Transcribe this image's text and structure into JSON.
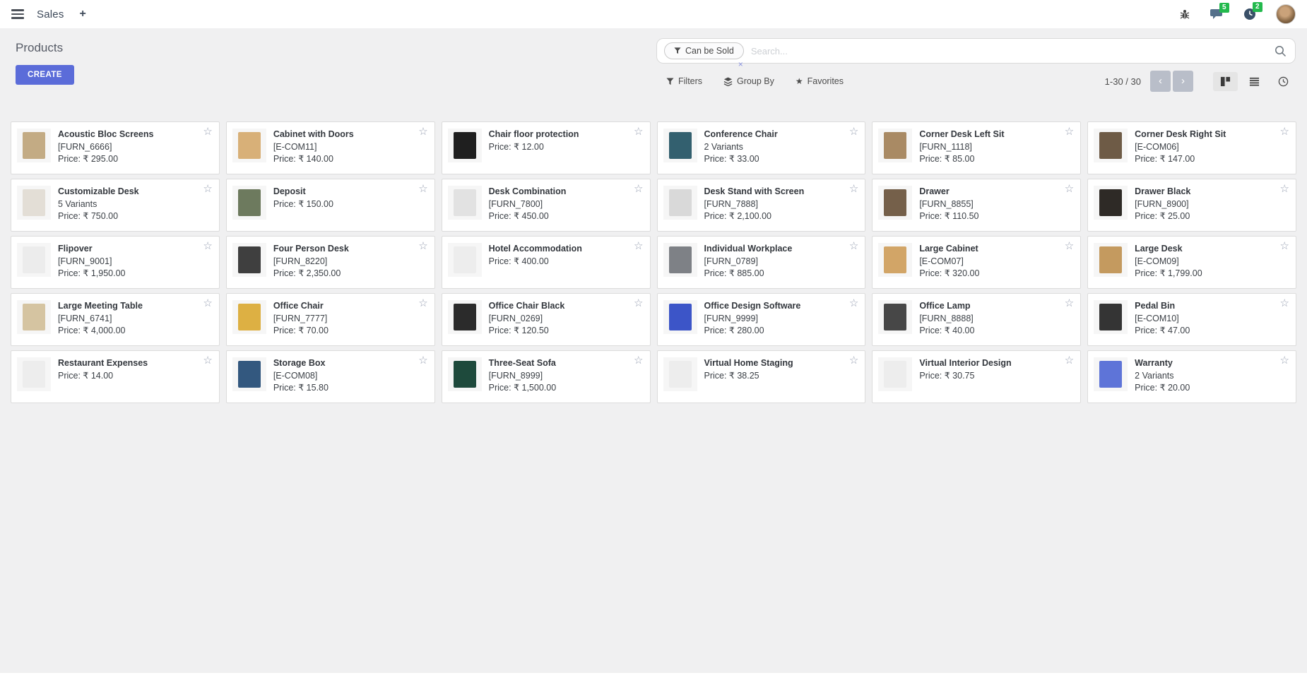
{
  "topbar": {
    "app_name": "Sales",
    "add_tab": "+",
    "message_badge": "5",
    "activity_badge": "2"
  },
  "control_panel": {
    "title": "Products",
    "create_label": "CREATE",
    "search": {
      "facet": "Can be Sold",
      "remove": "×",
      "placeholder": "Search..."
    },
    "filters_label": "Filters",
    "group_by_label": "Group By",
    "favorites_label": "Favorites",
    "pager_range": "1-30 / 30",
    "prev": "‹",
    "next": "›"
  },
  "colors": {
    "primary": "#5b6cd9",
    "badge_green": "#23b94d",
    "background": "#f0f0f1"
  },
  "icons": [
    "menu-icon",
    "bug-icon",
    "messages-icon",
    "activity-clock-icon",
    "avatar",
    "funnel-icon",
    "search-icon",
    "group-by-layers-icon",
    "favorites-star-icon",
    "kanban-view-icon",
    "list-view-icon",
    "activity-view-icon",
    "favorite-star-icon"
  ],
  "products": [
    {
      "name": "Acoustic Bloc Screens",
      "line2": "[FURN_6666]",
      "price": "Price: ₹ 295.00",
      "thumb": "#c3ab84"
    },
    {
      "name": "Cabinet with Doors",
      "line2": "[E-COM11]",
      "price": "Price: ₹ 140.00",
      "thumb": "#d8b078"
    },
    {
      "name": "Chair floor protection",
      "line2": null,
      "price": "Price: ₹ 12.00",
      "thumb": "#1f1f1f"
    },
    {
      "name": "Conference Chair",
      "line2": "2 Variants",
      "price": "Price: ₹ 33.00",
      "thumb": "#33606f"
    },
    {
      "name": "Corner Desk Left Sit",
      "line2": "[FURN_1118]",
      "price": "Price: ₹ 85.00",
      "thumb": "#a98a64"
    },
    {
      "name": "Corner Desk Right Sit",
      "line2": "[E-COM06]",
      "price": "Price: ₹ 147.00",
      "thumb": "#6e5b46"
    },
    {
      "name": "Customizable Desk",
      "line2": "5 Variants",
      "price": "Price: ₹ 750.00",
      "thumb": "#e3ded6"
    },
    {
      "name": "Deposit",
      "line2": null,
      "price": "Price: ₹ 150.00",
      "thumb": "#6d7a5e"
    },
    {
      "name": "Desk Combination",
      "line2": "[FURN_7800]",
      "price": "Price: ₹ 450.00",
      "thumb": "#e2e2e2"
    },
    {
      "name": "Desk Stand with Screen",
      "line2": "[FURN_7888]",
      "price": "Price: ₹ 2,100.00",
      "thumb": "#d9d9d9"
    },
    {
      "name": "Drawer",
      "line2": "[FURN_8855]",
      "price": "Price: ₹ 110.50",
      "thumb": "#75604a"
    },
    {
      "name": "Drawer Black",
      "line2": "[FURN_8900]",
      "price": "Price: ₹ 25.00",
      "thumb": "#2e2a26"
    },
    {
      "name": "Flipover",
      "line2": "[FURN_9001]",
      "price": "Price: ₹ 1,950.00",
      "thumb": "#ececec"
    },
    {
      "name": "Four Person Desk",
      "line2": "[FURN_8220]",
      "price": "Price: ₹ 2,350.00",
      "thumb": "#3f3f3f"
    },
    {
      "name": "Hotel Accommodation",
      "line2": null,
      "price": "Price: ₹ 400.00",
      "thumb": "#ededed"
    },
    {
      "name": "Individual Workplace",
      "line2": "[FURN_0789]",
      "price": "Price: ₹ 885.00",
      "thumb": "#7e8186"
    },
    {
      "name": "Large Cabinet",
      "line2": "[E-COM07]",
      "price": "Price: ₹ 320.00",
      "thumb": "#d2a567"
    },
    {
      "name": "Large Desk",
      "line2": "[E-COM09]",
      "price": "Price: ₹ 1,799.00",
      "thumb": "#c49a5f"
    },
    {
      "name": "Large Meeting Table",
      "line2": "[FURN_6741]",
      "price": "Price: ₹ 4,000.00",
      "thumb": "#d5c4a1"
    },
    {
      "name": "Office Chair",
      "line2": "[FURN_7777]",
      "price": "Price: ₹ 70.00",
      "thumb": "#ddb043"
    },
    {
      "name": "Office Chair Black",
      "line2": "[FURN_0269]",
      "price": "Price: ₹ 120.50",
      "thumb": "#2b2b2b"
    },
    {
      "name": "Office Design Software",
      "line2": "[FURN_9999]",
      "price": "Price: ₹ 280.00",
      "thumb": "#3c55c8"
    },
    {
      "name": "Office Lamp",
      "line2": "[FURN_8888]",
      "price": "Price: ₹ 40.00",
      "thumb": "#474747"
    },
    {
      "name": "Pedal Bin",
      "line2": "[E-COM10]",
      "price": "Price: ₹ 47.00",
      "thumb": "#343434"
    },
    {
      "name": "Restaurant Expenses",
      "line2": null,
      "price": "Price: ₹ 14.00",
      "thumb": "#ededed"
    },
    {
      "name": "Storage Box",
      "line2": "[E-COM08]",
      "price": "Price: ₹ 15.80",
      "thumb": "#33587f"
    },
    {
      "name": "Three-Seat Sofa",
      "line2": "[FURN_8999]",
      "price": "Price: ₹ 1,500.00",
      "thumb": "#1e4a3c"
    },
    {
      "name": "Virtual Home Staging",
      "line2": null,
      "price": "Price: ₹ 38.25",
      "thumb": "#ededed"
    },
    {
      "name": "Virtual Interior Design",
      "line2": null,
      "price": "Price: ₹ 30.75",
      "thumb": "#ededed"
    },
    {
      "name": "Warranty",
      "line2": "2 Variants",
      "price": "Price: ₹ 20.00",
      "thumb": "#5e74d8"
    }
  ]
}
